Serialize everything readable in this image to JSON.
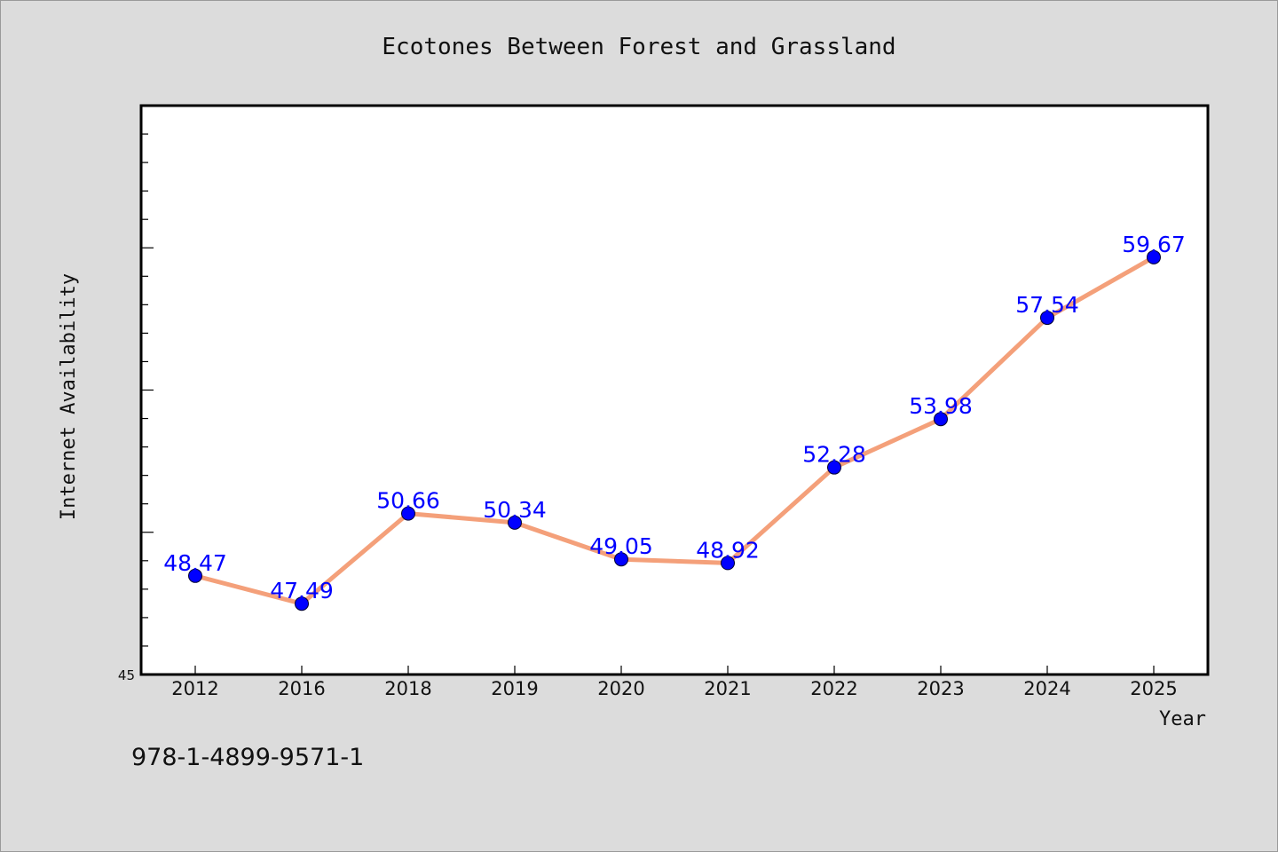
{
  "chart_data": {
    "type": "line",
    "title": "Ecotones Between Forest and Grassland",
    "xlabel": "Year",
    "ylabel": "Internet Availability",
    "categories": [
      "2012",
      "2016",
      "2018",
      "2019",
      "2020",
      "2021",
      "2022",
      "2023",
      "2024",
      "2025"
    ],
    "series": [
      {
        "values": [
          48.47,
          47.49,
          50.66,
          50.34,
          49.05,
          48.92,
          52.28,
          53.98,
          57.54,
          59.67
        ]
      }
    ],
    "data_labels": [
      "48.47",
      "47.49",
      "50.66",
      "50.34",
      "49.05",
      "48.92",
      "52.28",
      "53.98",
      "57.54",
      "59.67"
    ],
    "y_tick_labels": [
      "45"
    ],
    "ylim": [
      45,
      65
    ],
    "grid": false,
    "legend": "none",
    "colors": {
      "line": "#f4a07a",
      "marker": "#0000ff",
      "data_label": "#0000ff",
      "plot_background": "#ffffff",
      "page_background": "#dcdcdc"
    }
  },
  "footer": {
    "isbn": "978-1-4899-9571-1"
  }
}
